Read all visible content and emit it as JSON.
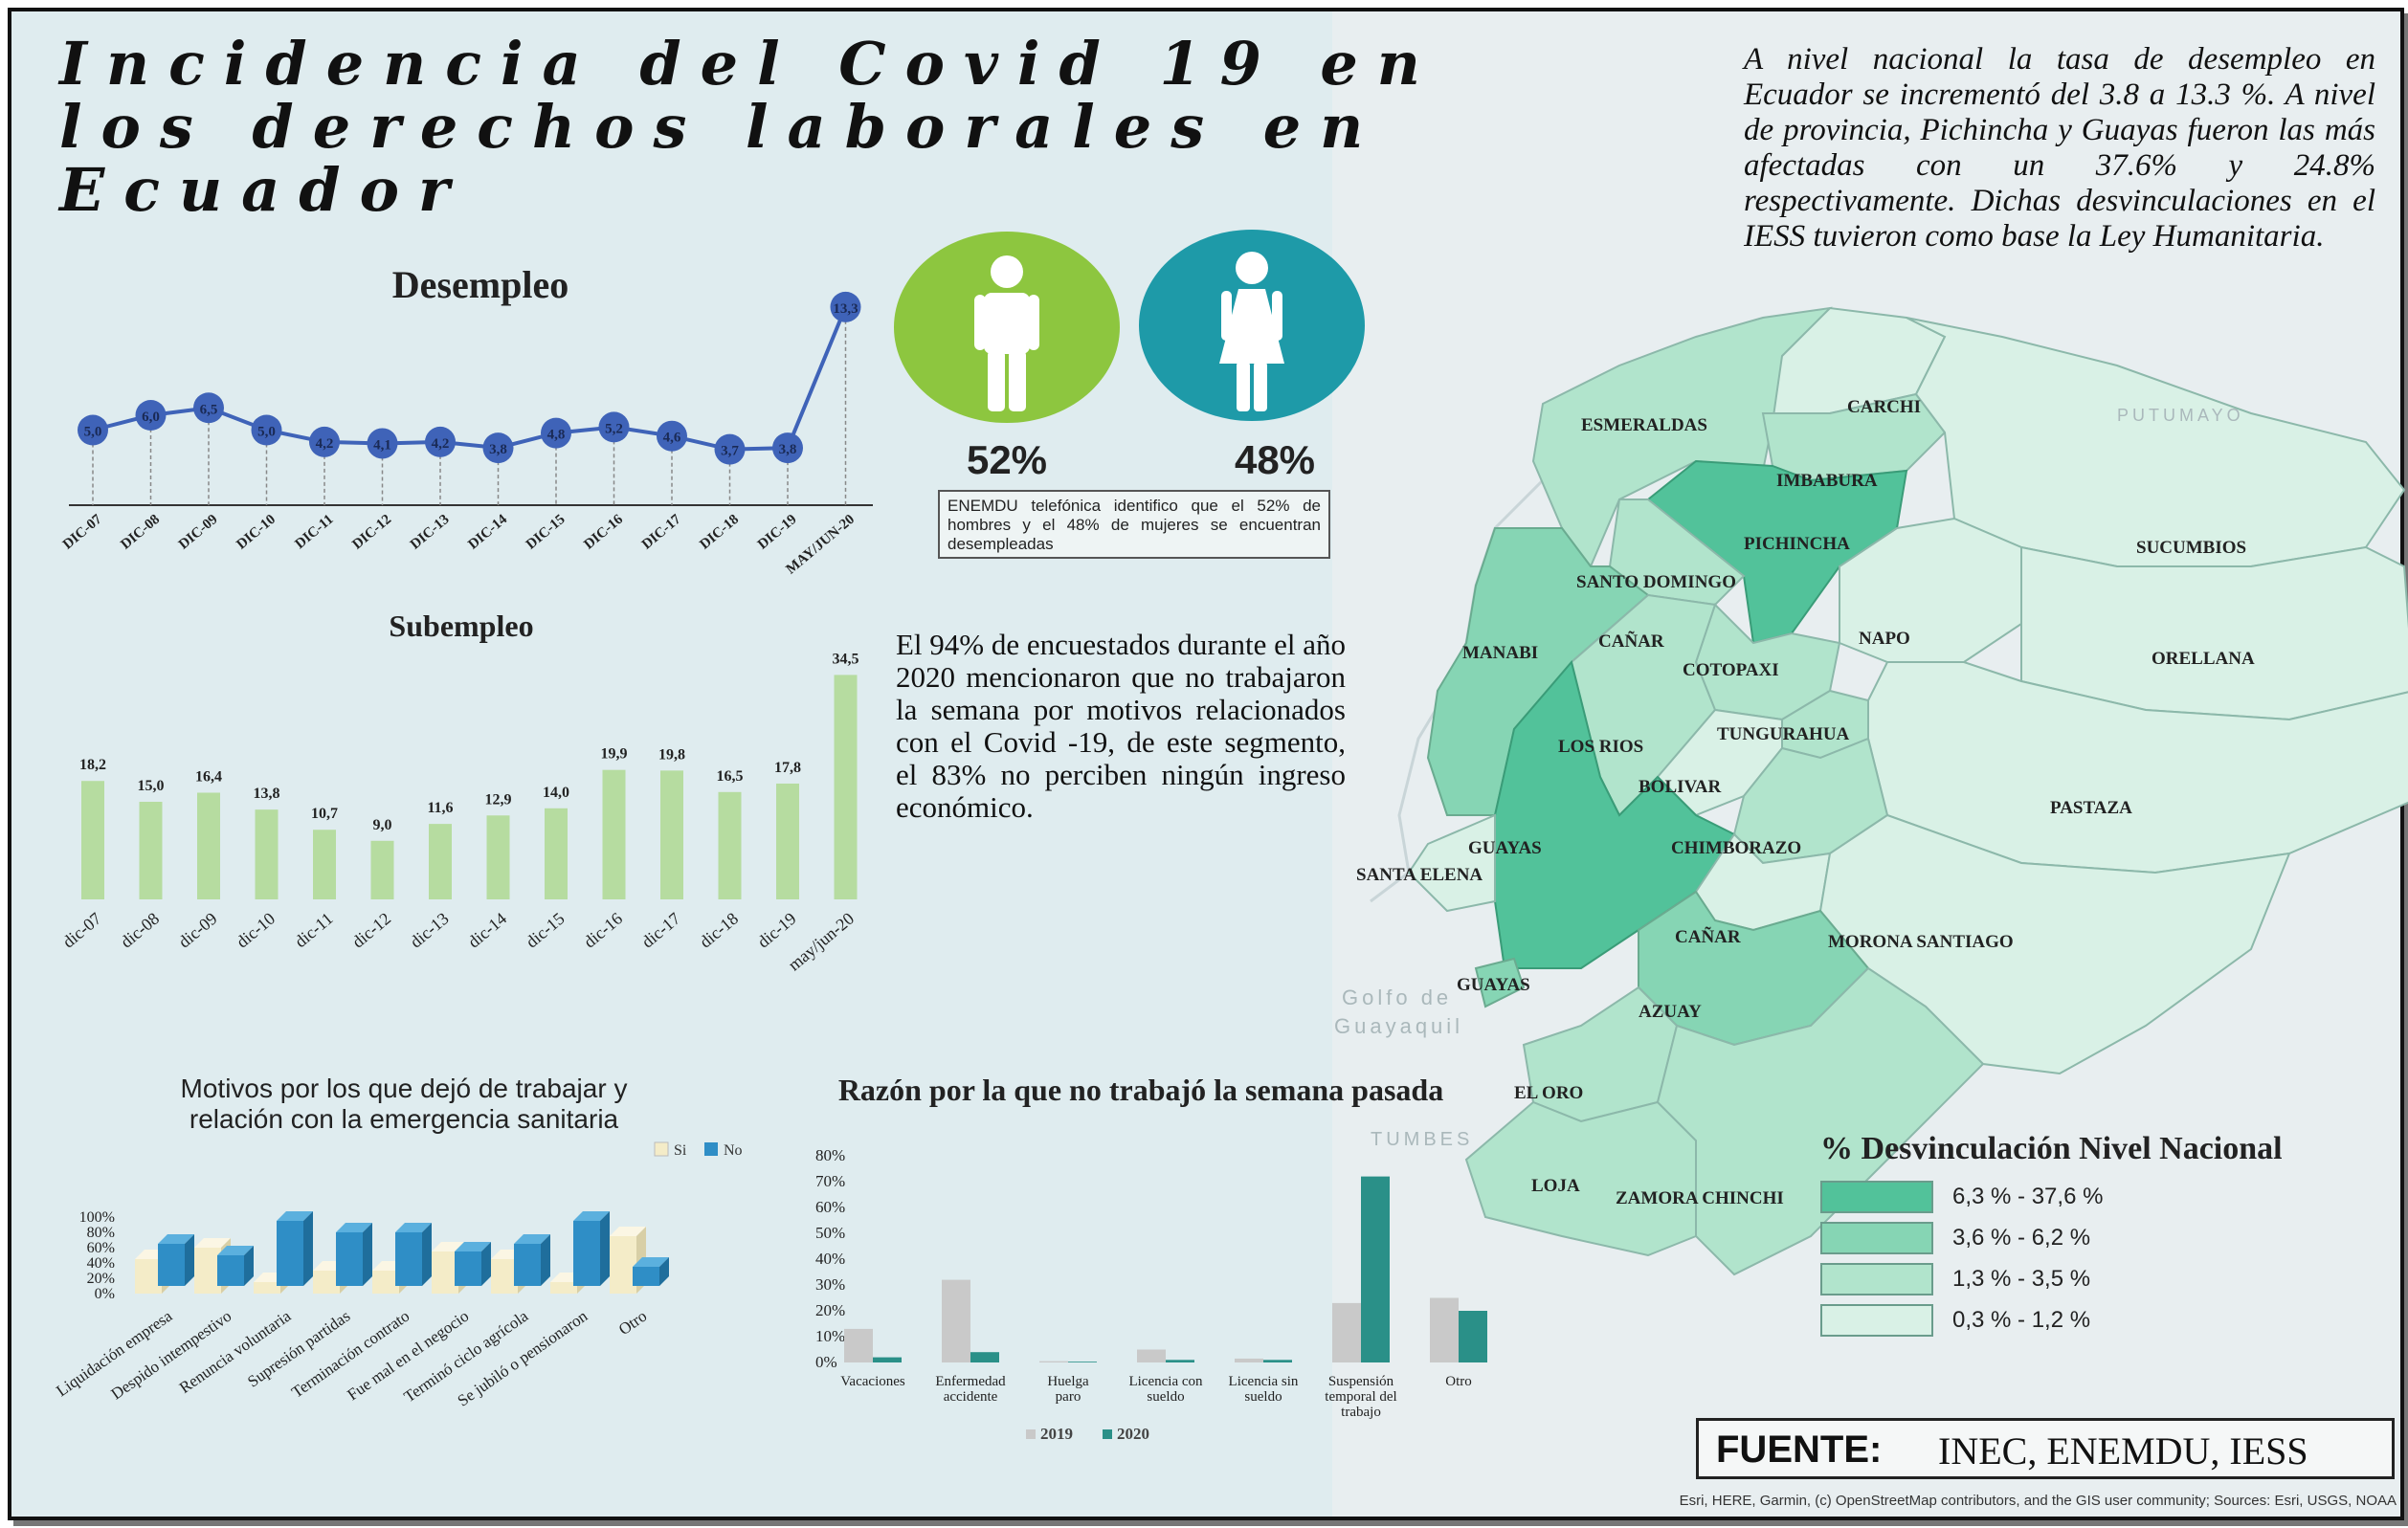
{
  "title": "Incidencia del Covid  19 en los derechos laborales en Ecuador",
  "intro_text": "A nivel nacional la tasa de desempleo en Ecuador se incrementó del 3.8 a 13.3 %. A nivel de provincia, Pichincha y Guayas fueron las más afectadas con un 37.6% y 24.8% respectivamente. Dichas desvinculaciones en el IESS tuvieron como base la Ley Humanitaria.",
  "gender": {
    "male_pct": "52%",
    "female_pct": "48%",
    "male_color": "#8dc63f",
    "female_color": "#1e9aa8",
    "note": "ENEMDU telefónica identifico que el 52% de hombres y el 48% de mujeres se encuentran desempleadas"
  },
  "covid_text": "El 94% de encuestados durante el año 2020 mencionaron que no trabajaron la semana por motivos relacionados con el Covid -19, de este segmento, el 83% no perciben ningún ingreso económico.",
  "chart_data": [
    {
      "id": "desempleo",
      "type": "line",
      "title": "Desempleo",
      "categories": [
        "DIC-07",
        "DIC-08",
        "DIC-09",
        "DIC-10",
        "DIC-11",
        "DIC-12",
        "DIC-13",
        "DIC-14",
        "DIC-15",
        "DIC-16",
        "DIC-17",
        "DIC-18",
        "DIC-19",
        "MAY/JUN-20"
      ],
      "values": [
        5.0,
        6.0,
        6.5,
        5.0,
        4.2,
        4.1,
        4.2,
        3.8,
        4.8,
        5.2,
        4.6,
        3.7,
        3.8,
        13.3
      ],
      "labels": [
        "5,0",
        "6,0",
        "6,5",
        "5,0",
        "4,2",
        "4,1",
        "4,2",
        "3,8",
        "4,8",
        "5,2",
        "4,6",
        "3,7",
        "3,8",
        "13,3"
      ],
      "color": "#3f63b8"
    },
    {
      "id": "subempleo",
      "type": "bar",
      "title": "Subempleo",
      "categories": [
        "dic-07",
        "dic-08",
        "dic-09",
        "dic-10",
        "dic-11",
        "dic-12",
        "dic-13",
        "dic-14",
        "dic-15",
        "dic-16",
        "dic-17",
        "dic-18",
        "dic-19",
        "may/jun-20"
      ],
      "values": [
        18.2,
        15.0,
        16.4,
        13.8,
        10.7,
        9.0,
        11.6,
        12.9,
        14.0,
        19.9,
        19.8,
        16.5,
        17.8,
        34.5
      ],
      "labels": [
        "18,2",
        "15,0",
        "16,4",
        "13,8",
        "10,7",
        "9,0",
        "11,6",
        "12,9",
        "14,0",
        "19,9",
        "19,8",
        "16,5",
        "17,8",
        "34,5"
      ],
      "color": "#b6dca0"
    },
    {
      "id": "motivos",
      "type": "bar",
      "title": "Motivos por los que dejó de trabajar y relación con la emergencia sanitaria",
      "categories": [
        "Liquidación empresa",
        "Despido intempestivo",
        "Renuncia voluntaria",
        "Supresión partidas",
        "Terminación contrato",
        "Fue mal en el negocio",
        "Terminó ciclo agrícola",
        "Se jubiló o pensionaron",
        "Otro"
      ],
      "series": [
        {
          "name": "Si",
          "values": [
            45,
            60,
            15,
            30,
            30,
            55,
            45,
            15,
            75
          ],
          "color": "#f4ecc8"
        },
        {
          "name": "No",
          "values": [
            55,
            40,
            85,
            70,
            70,
            45,
            55,
            85,
            25
          ],
          "color": "#2f8ec6"
        }
      ],
      "yticks": [
        "0%",
        "20%",
        "40%",
        "60%",
        "80%",
        "100%"
      ],
      "ylim": [
        0,
        100
      ]
    },
    {
      "id": "razon",
      "type": "bar",
      "title": "Razón por la que no trabajó la semana pasada",
      "categories": [
        "Vacaciones",
        "Enfermedad accidente",
        "Huelga paro",
        "Licencia con sueldo",
        "Licencia sin sueldo",
        "Suspensión temporal del trabajo",
        "Otro"
      ],
      "series": [
        {
          "name": "2019",
          "values": [
            13,
            32,
            0.5,
            5,
            1.5,
            23,
            25
          ],
          "color": "#c9c9c9"
        },
        {
          "name": "2020",
          "values": [
            2,
            4,
            0.3,
            1,
            1,
            72,
            20
          ],
          "color": "#2a9088"
        }
      ],
      "yticks": [
        "0%",
        "10%",
        "20%",
        "30%",
        "40%",
        "50%",
        "60%",
        "70%",
        "80%"
      ],
      "ylim": [
        0,
        80
      ]
    }
  ],
  "map": {
    "legend_title": "% Desvinculación Nivel Nacional",
    "legend": [
      {
        "label": "6,3 % - 37,6 %",
        "color": "#52c29a"
      },
      {
        "label": "3,6 % - 6,2 %",
        "color": "#86d5b4"
      },
      {
        "label": "1,3 % - 3,5 %",
        "color": "#b1e4cc"
      },
      {
        "label": "0,3 % - 1,2 %",
        "color": "#d9f1e6"
      }
    ],
    "provinces": [
      "ESMERALDAS",
      "CARCHI",
      "IMBABURA",
      "PICHINCHA",
      "SUCUMBIOS",
      "SANTO DOMINGO",
      "MANABI",
      "CAÑAR",
      "NAPO",
      "ORELLANA",
      "COTOPAXI",
      "TUNGURAHUA",
      "LOS RIOS",
      "BOLIVAR",
      "PASTAZA",
      "GUAYAS",
      "CHIMBORAZO",
      "SANTA ELENA",
      "CAÑAR",
      "MORONA SANTIAGO",
      "GUAYAS",
      "AZUAY",
      "EL ORO",
      "LOJA",
      "ZAMORA CHINCHI"
    ],
    "background_labels": [
      "PUTUMAYO",
      "Golfo de",
      "Guayaquil",
      "TUMBES"
    ]
  },
  "fuente_label": "FUENTE:",
  "fuente_value": "INEC, ENEMDU, IESS",
  "attribution": "Esri, HERE, Garmin, (c) OpenStreetMap contributors, and the GIS user community; Sources: Esri, USGS, NOAA"
}
